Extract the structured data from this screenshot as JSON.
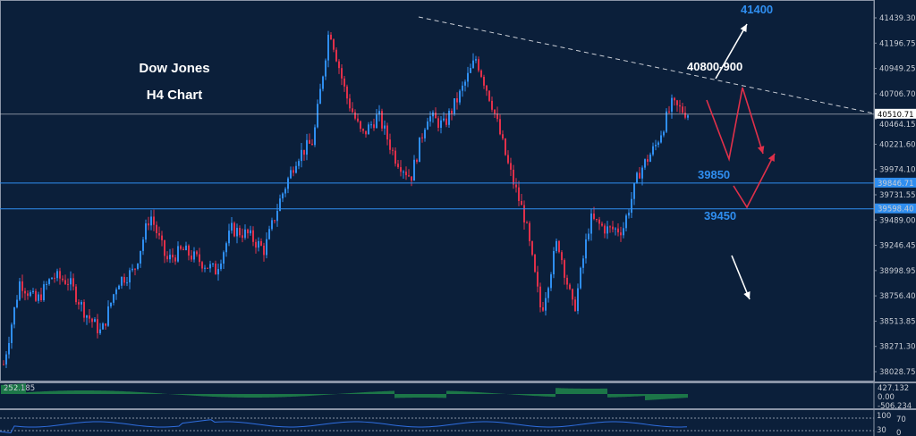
{
  "chart_data": {
    "type": "candlestick",
    "title": "Dow Jones",
    "subtitle": "H4 Chart",
    "ylim": [
      38028.75,
      41439.3
    ],
    "y_ticks": [
      "41439.30",
      "41196.75",
      "40949.25",
      "40706.70",
      "40464.15",
      "40221.60",
      "39974.10",
      "39731.55",
      "39489.00",
      "39246.45",
      "38998.95",
      "38756.40",
      "38513.85",
      "38271.30",
      "38028.75"
    ],
    "price_path_approx": [
      38100,
      38900,
      38700,
      38950,
      38900,
      38600,
      38400,
      38900,
      39000,
      39550,
      39100,
      39200,
      39100,
      39000,
      39400,
      39350,
      39200,
      39700,
      40100,
      40250,
      41350,
      40700,
      40300,
      40500,
      40100,
      39900,
      40500,
      40400,
      40700,
      41050,
      40600,
      40000,
      39500,
      38600,
      39300,
      38600,
      39500,
      39400,
      39400,
      39950,
      40200,
      40600,
      40520
    ],
    "current_price": {
      "value": 40510.71,
      "label": "40510.71",
      "color": "#ffffff"
    },
    "levels": [
      {
        "value": 39846.71,
        "label": "39846.71",
        "color": "#2f8ef0"
      },
      {
        "value": 39598.4,
        "label": "39598.40",
        "color": "#2f8ef0"
      }
    ],
    "bull_color": "#2f8ef0",
    "bear_color": "#e0304a",
    "annotations": [
      {
        "text": "41400",
        "color": "#2f8ef0"
      },
      {
        "text": "40800-900",
        "color": "#ffffff"
      },
      {
        "text": "39850",
        "color": "#2f8ef0"
      },
      {
        "text": "39450",
        "color": "#2f8ef0"
      }
    ],
    "macd": {
      "value_label": "252.185",
      "ticks": [
        "427.132",
        "0.00",
        "-506.234"
      ]
    },
    "oscillator": {
      "ticks": [
        "100",
        "70",
        "30",
        "0"
      ]
    }
  },
  "colors": {
    "background": "#0b1f3a",
    "grid_line": "#8a94a6"
  }
}
